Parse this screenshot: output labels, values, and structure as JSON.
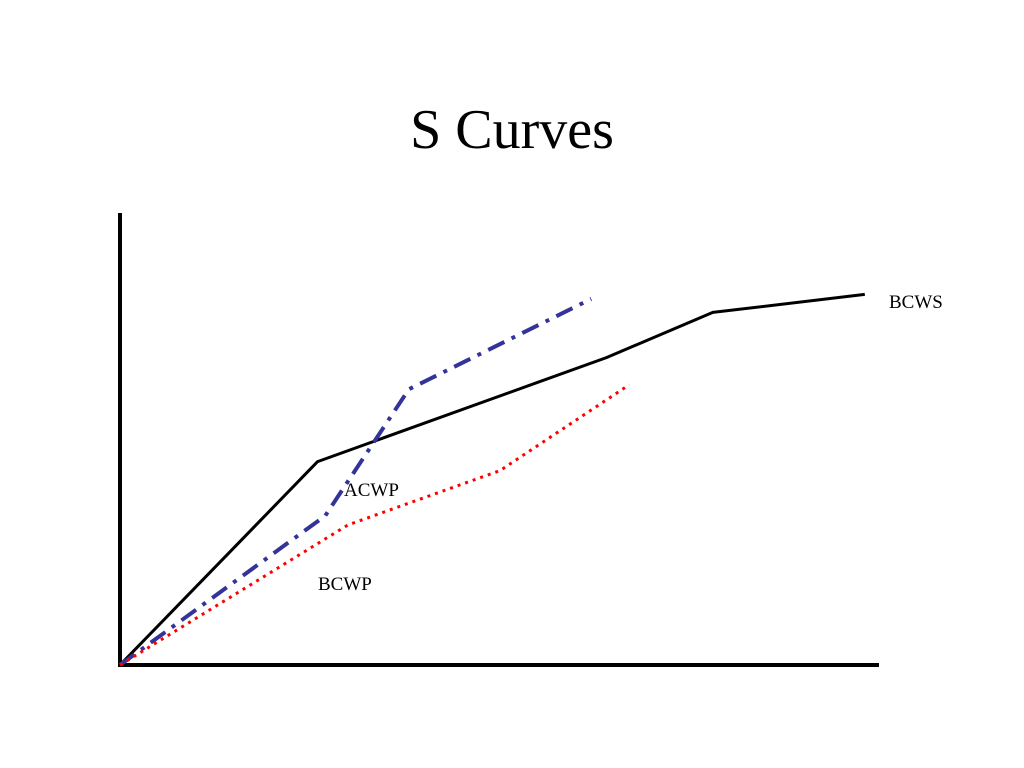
{
  "slide": {
    "title": "S Curves"
  },
  "chart_data": {
    "type": "line",
    "title": "S Curves",
    "xlabel": "",
    "ylabel": "",
    "xlim": [
      0,
      100
    ],
    "ylim": [
      0,
      100
    ],
    "grid": false,
    "legend": "none",
    "series": [
      {
        "name": "BCWS",
        "color": "#000000",
        "style": "solid",
        "points": [
          [
            0,
            0
          ],
          [
            26,
            45
          ],
          [
            64,
            68
          ],
          [
            78,
            78
          ],
          [
            98,
            82
          ]
        ]
      },
      {
        "name": "ACWP",
        "color": "#333399",
        "style": "dash-dot",
        "points": [
          [
            0,
            0
          ],
          [
            27,
            33
          ],
          [
            38,
            61
          ],
          [
            62,
            81
          ]
        ]
      },
      {
        "name": "BCWP",
        "color": "#ff0000",
        "style": "dotted",
        "points": [
          [
            0,
            0
          ],
          [
            30,
            31
          ],
          [
            50,
            43
          ],
          [
            67,
            62
          ]
        ]
      }
    ]
  }
}
